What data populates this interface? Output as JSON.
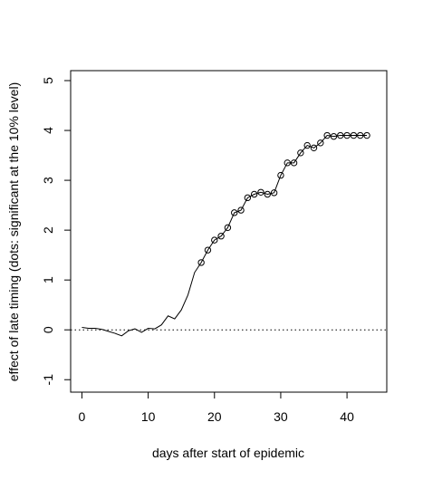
{
  "chart_data": {
    "type": "line",
    "title": "",
    "xlabel": "days after start of epidemic",
    "ylabel": "effect of late timing (dots: significant at the 10% level)",
    "xlim": [
      -1.7,
      46
    ],
    "ylim": [
      -1.25,
      5.2
    ],
    "xticks": [
      0,
      10,
      20,
      30,
      40
    ],
    "yticks": [
      -1,
      0,
      1,
      2,
      3,
      4,
      5
    ],
    "xtick_labels": [
      "0",
      "10",
      "20",
      "30",
      "40"
    ],
    "ytick_labels": [
      "-1",
      "0",
      "1",
      "2",
      "3",
      "4",
      "5"
    ],
    "reference_line": {
      "y": 0,
      "style": "dotted"
    },
    "grid": false,
    "legend": "none",
    "line_color": "#000000",
    "series": [
      {
        "x": [
          0,
          1,
          2,
          3,
          4,
          5,
          6,
          7,
          8,
          9,
          10,
          11,
          12,
          13,
          14,
          15,
          16,
          17,
          18,
          19,
          20,
          21,
          22,
          23,
          24,
          25,
          26,
          27,
          28,
          29,
          30,
          31,
          32,
          33,
          34,
          35,
          36,
          37,
          38,
          39,
          40,
          41,
          42,
          43
        ],
        "y": [
          0.05,
          0.03,
          0.03,
          0.01,
          -0.03,
          -0.07,
          -0.12,
          -0.02,
          0.02,
          -0.05,
          0.03,
          0.02,
          0.1,
          0.28,
          0.22,
          0.4,
          0.7,
          1.15,
          1.35,
          1.6,
          1.8,
          1.88,
          2.05,
          2.35,
          2.4,
          2.65,
          2.72,
          2.76,
          2.72,
          2.75,
          3.1,
          3.35,
          3.35,
          3.55,
          3.7,
          3.65,
          3.75,
          3.9,
          3.88,
          3.9,
          3.9,
          3.9,
          3.9,
          3.9
        ],
        "significant": [
          false,
          false,
          false,
          false,
          false,
          false,
          false,
          false,
          false,
          false,
          false,
          false,
          false,
          false,
          false,
          false,
          false,
          false,
          true,
          true,
          true,
          true,
          true,
          true,
          true,
          true,
          true,
          true,
          true,
          true,
          true,
          true,
          true,
          true,
          true,
          true,
          true,
          true,
          true,
          true,
          true,
          true,
          true,
          true
        ]
      }
    ]
  }
}
